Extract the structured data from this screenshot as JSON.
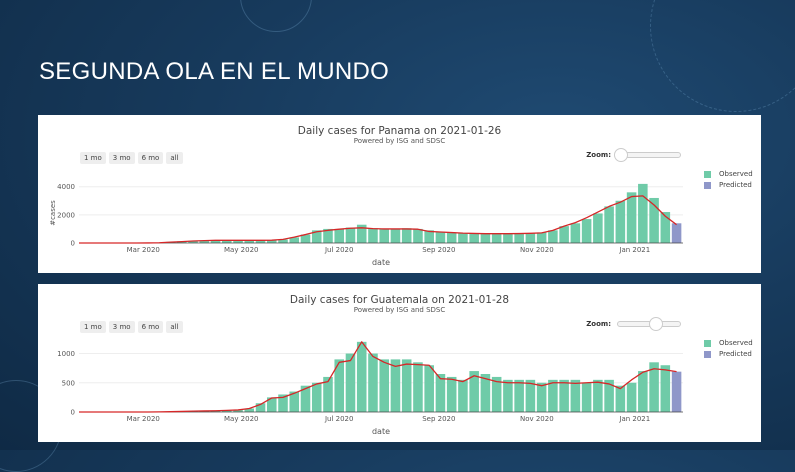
{
  "slide": {
    "title": "SEGUNDA OLA EN EL MUNDO"
  },
  "colors": {
    "observed": "#6fcba8",
    "predicted": "#8f97c9",
    "trend": "#d62728",
    "background": "#173a5c"
  },
  "range_buttons": [
    "1 mo",
    "3 mo",
    "6 mo",
    "all"
  ],
  "zoom_label": "Zoom:",
  "chart_data": [
    {
      "type": "bar",
      "title": "Daily cases for Panama on 2021-01-26",
      "subtitle": "Powered by ISG and SDSC",
      "xlabel": "date",
      "ylabel": "#cases",
      "yticks": [
        0,
        2000,
        4000
      ],
      "ylim": [
        0,
        5400
      ],
      "xticks": [
        "2020-03-01",
        "2020-05-01",
        "2020-07-01",
        "2020-09-01",
        "2020-11-01",
        "2021-01-01"
      ],
      "xtick_labels": [
        "Mar 2020",
        "May 2020",
        "Jul 2020",
        "Sep 2020",
        "Nov 2020",
        "Jan 2021"
      ],
      "xlim": [
        "2020-01-21",
        "2021-01-31"
      ],
      "zoom_level": 0,
      "legend": [
        "Observed",
        "Predicted"
      ],
      "legend_position": "right",
      "dates": [
        "2020-01-22",
        "2020-01-29",
        "2020-02-05",
        "2020-02-12",
        "2020-02-19",
        "2020-02-26",
        "2020-03-04",
        "2020-03-11",
        "2020-03-18",
        "2020-03-25",
        "2020-04-01",
        "2020-04-08",
        "2020-04-15",
        "2020-04-22",
        "2020-04-29",
        "2020-05-06",
        "2020-05-13",
        "2020-05-20",
        "2020-05-27",
        "2020-06-03",
        "2020-06-10",
        "2020-06-17",
        "2020-06-24",
        "2020-07-01",
        "2020-07-08",
        "2020-07-15",
        "2020-07-22",
        "2020-07-29",
        "2020-08-05",
        "2020-08-12",
        "2020-08-19",
        "2020-08-26",
        "2020-09-02",
        "2020-09-09",
        "2020-09-16",
        "2020-09-23",
        "2020-09-30",
        "2020-10-07",
        "2020-10-14",
        "2020-10-21",
        "2020-10-28",
        "2020-11-04",
        "2020-11-11",
        "2020-11-18",
        "2020-11-25",
        "2020-12-02",
        "2020-12-09",
        "2020-12-16",
        "2020-12-23",
        "2020-12-30",
        "2021-01-06",
        "2021-01-13",
        "2021-01-20"
      ],
      "observed": [
        0,
        0,
        0,
        0,
        0,
        0,
        5,
        30,
        80,
        120,
        150,
        180,
        200,
        190,
        180,
        200,
        190,
        180,
        250,
        400,
        600,
        900,
        1000,
        1000,
        1100,
        1300,
        1050,
        1000,
        1000,
        1050,
        1000,
        900,
        800,
        750,
        700,
        700,
        650,
        650,
        700,
        650,
        700,
        750,
        900,
        1200,
        1400,
        1700,
        2100,
        2600,
        3000,
        3600,
        4200,
        3200,
        2200
      ],
      "trend": [
        0,
        0,
        0,
        0,
        0,
        0,
        5,
        20,
        60,
        100,
        140,
        170,
        190,
        190,
        190,
        190,
        190,
        200,
        260,
        420,
        600,
        800,
        900,
        980,
        1050,
        1080,
        1020,
        1000,
        1000,
        1000,
        980,
        820,
        780,
        740,
        700,
        680,
        660,
        660,
        660,
        670,
        690,
        720,
        900,
        1200,
        1450,
        1800,
        2200,
        2600,
        2900,
        3300,
        3350,
        2700,
        1900
      ],
      "predicted": {
        "date": "2021-01-27",
        "value": 1400,
        "trend": 1300
      }
    },
    {
      "type": "bar",
      "title": "Daily cases for Guatemala on 2021-01-28",
      "subtitle": "Powered by ISG and SDSC",
      "xlabel": "date",
      "ylabel": "",
      "yticks": [
        0,
        500,
        1000
      ],
      "ylim": [
        0,
        1300
      ],
      "xticks": [
        "2020-03-01",
        "2020-05-01",
        "2020-07-01",
        "2020-09-01",
        "2020-11-01",
        "2021-01-01"
      ],
      "xtick_labels": [
        "Mar 2020",
        "May 2020",
        "Jul 2020",
        "Sep 2020",
        "Nov 2020",
        "Jan 2021"
      ],
      "xlim": [
        "2020-01-21",
        "2021-01-31"
      ],
      "zoom_level": 0.7,
      "legend": [
        "Observed",
        "Predicted"
      ],
      "legend_position": "right",
      "dates": [
        "2020-01-22",
        "2020-01-29",
        "2020-02-05",
        "2020-02-12",
        "2020-02-19",
        "2020-02-26",
        "2020-03-04",
        "2020-03-11",
        "2020-03-18",
        "2020-03-25",
        "2020-04-01",
        "2020-04-08",
        "2020-04-15",
        "2020-04-22",
        "2020-04-29",
        "2020-05-06",
        "2020-05-13",
        "2020-05-20",
        "2020-05-27",
        "2020-06-03",
        "2020-06-10",
        "2020-06-17",
        "2020-06-24",
        "2020-07-01",
        "2020-07-08",
        "2020-07-15",
        "2020-07-22",
        "2020-07-29",
        "2020-08-05",
        "2020-08-12",
        "2020-08-19",
        "2020-08-26",
        "2020-09-02",
        "2020-09-09",
        "2020-09-16",
        "2020-09-23",
        "2020-09-30",
        "2020-10-07",
        "2020-10-14",
        "2020-10-21",
        "2020-10-28",
        "2020-11-04",
        "2020-11-11",
        "2020-11-18",
        "2020-11-25",
        "2020-12-02",
        "2020-12-09",
        "2020-12-16",
        "2020-12-23",
        "2020-12-30",
        "2021-01-06",
        "2021-01-13",
        "2021-01-20"
      ],
      "observed": [
        0,
        0,
        0,
        0,
        0,
        0,
        0,
        2,
        5,
        10,
        15,
        20,
        25,
        30,
        40,
        60,
        150,
        250,
        300,
        350,
        450,
        500,
        600,
        900,
        1000,
        1200,
        1000,
        900,
        900,
        900,
        850,
        800,
        650,
        600,
        550,
        700,
        650,
        600,
        550,
        550,
        550,
        500,
        550,
        550,
        550,
        500,
        550,
        550,
        450,
        500,
        700,
        850,
        800
      ],
      "trend": [
        0,
        0,
        0,
        0,
        0,
        0,
        0,
        2,
        5,
        10,
        15,
        18,
        22,
        28,
        35,
        60,
        130,
        240,
        250,
        320,
        400,
        480,
        520,
        850,
        880,
        1200,
        950,
        850,
        780,
        820,
        810,
        800,
        570,
        560,
        520,
        620,
        570,
        520,
        500,
        500,
        490,
        450,
        500,
        500,
        490,
        500,
        510,
        480,
        400,
        550,
        680,
        740,
        720
      ],
      "predicted": {
        "date": "2021-01-27",
        "value": 690,
        "trend": 690
      }
    }
  ]
}
